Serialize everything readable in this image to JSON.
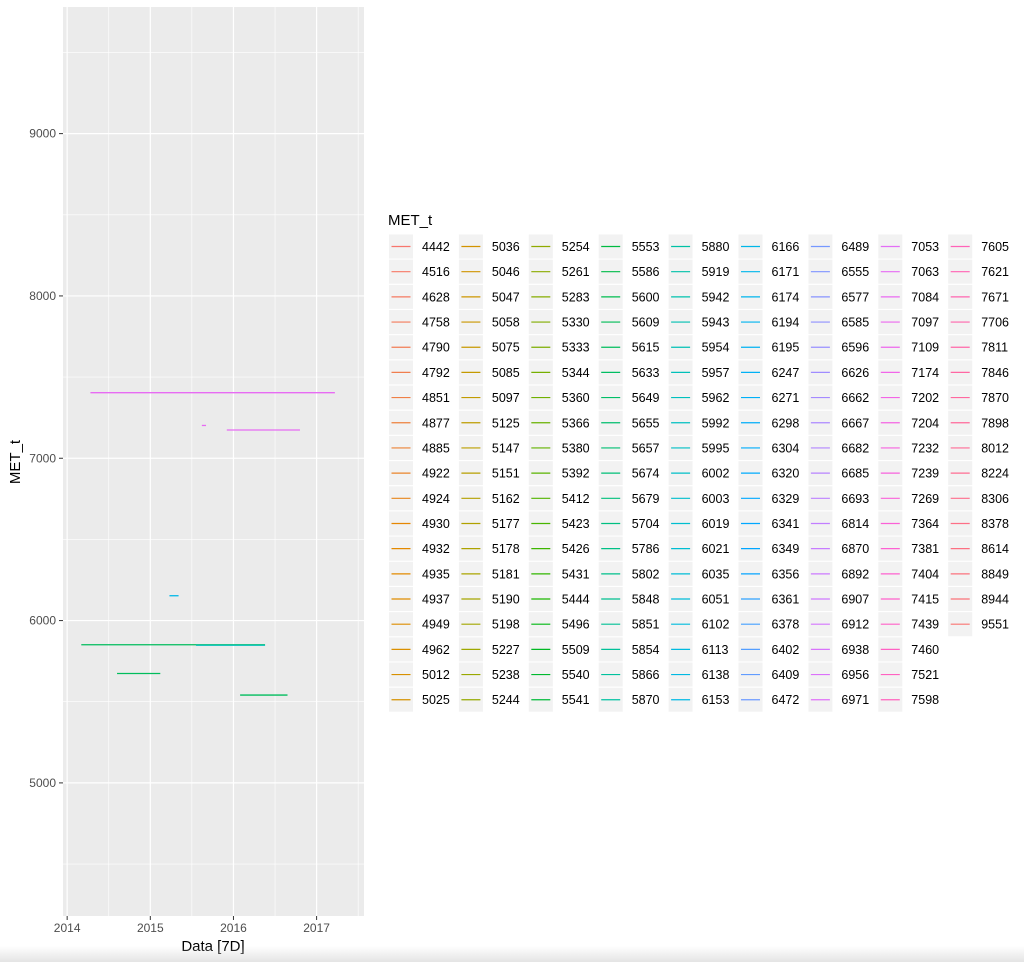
{
  "chart_data": {
    "type": "line",
    "title": "",
    "xlabel": "Data [7D]",
    "ylabel": "MET_t",
    "x_ticks": [
      "2014",
      "2015",
      "2016",
      "2017"
    ],
    "y_ticks": [
      "5000",
      "6000",
      "7000",
      "8000",
      "9000"
    ],
    "xlim": [
      2013.95,
      2017.57
    ],
    "ylim": [
      4180,
      9780
    ],
    "legend_title": "MET_t",
    "legend_labels": [
      "4442",
      "4516",
      "4628",
      "4758",
      "4790",
      "4792",
      "4851",
      "4877",
      "4885",
      "4922",
      "4924",
      "4930",
      "4932",
      "4935",
      "4937",
      "4949",
      "4962",
      "5012",
      "5025",
      "5036",
      "5046",
      "5047",
      "5058",
      "5075",
      "5085",
      "5097",
      "5125",
      "5147",
      "5151",
      "5162",
      "5177",
      "5178",
      "5181",
      "5190",
      "5198",
      "5227",
      "5238",
      "5244",
      "5254",
      "5261",
      "5283",
      "5330",
      "5333",
      "5344",
      "5360",
      "5366",
      "5380",
      "5392",
      "5412",
      "5423",
      "5426",
      "5431",
      "5444",
      "5496",
      "5509",
      "5540",
      "5541",
      "5553",
      "5586",
      "5600",
      "5609",
      "5615",
      "5633",
      "5649",
      "5655",
      "5657",
      "5674",
      "5679",
      "5704",
      "5786",
      "5802",
      "5848",
      "5851",
      "5854",
      "5866",
      "5870",
      "5880",
      "5919",
      "5942",
      "5943",
      "5954",
      "5957",
      "5962",
      "5992",
      "5995",
      "6002",
      "6003",
      "6019",
      "6021",
      "6035",
      "6051",
      "6102",
      "6113",
      "6138",
      "6153",
      "6166",
      "6171",
      "6174",
      "6194",
      "6195",
      "6247",
      "6271",
      "6298",
      "6304",
      "6320",
      "6329",
      "6341",
      "6349",
      "6356",
      "6361",
      "6378",
      "6402",
      "6409",
      "6472",
      "6489",
      "6555",
      "6577",
      "6585",
      "6596",
      "6626",
      "6662",
      "6667",
      "6682",
      "6685",
      "6693",
      "6814",
      "6870",
      "6892",
      "6907",
      "6912",
      "6938",
      "6956",
      "6971",
      "7053",
      "7063",
      "7084",
      "7097",
      "7109",
      "7174",
      "7202",
      "7204",
      "7232",
      "7239",
      "7269",
      "7364",
      "7381",
      "7404",
      "7415",
      "7439",
      "7460",
      "7521",
      "7598",
      "7605",
      "7621",
      "7671",
      "7706",
      "7811",
      "7846",
      "7870",
      "7898",
      "8012",
      "8224",
      "8306",
      "8378",
      "8614",
      "8849",
      "8944",
      "9551"
    ],
    "series": [
      {
        "name": "7404",
        "x": [
          2014.28,
          2017.22
        ],
        "y": [
          7404,
          7404
        ],
        "color": "#E76BF3"
      },
      {
        "name": "7202",
        "x": [
          2015.62,
          2015.67
        ],
        "y": [
          7202,
          7202
        ],
        "color": "#E76BF3"
      },
      {
        "name": "7174",
        "x": [
          2015.92,
          2016.8
        ],
        "y": [
          7174,
          7174
        ],
        "color": "#E76BF3"
      },
      {
        "name": "6153",
        "x": [
          2015.23,
          2015.34
        ],
        "y": [
          6153,
          6153
        ],
        "color": "#00B8E7"
      },
      {
        "name": "5851",
        "x": [
          2014.17,
          2016.38
        ],
        "y": [
          5851,
          5851
        ],
        "color": "#00BD5C"
      },
      {
        "name": "5848",
        "x": [
          2015.55,
          2016.38
        ],
        "y": [
          5848,
          5848
        ],
        "color": "#00C0B8"
      },
      {
        "name": "5674",
        "x": [
          2014.6,
          2015.12
        ],
        "y": [
          5674,
          5674
        ],
        "color": "#00BD5C"
      },
      {
        "name": "5541",
        "x": [
          2016.08,
          2016.65
        ],
        "y": [
          5541,
          5541
        ],
        "color": "#00BD5C"
      }
    ]
  }
}
